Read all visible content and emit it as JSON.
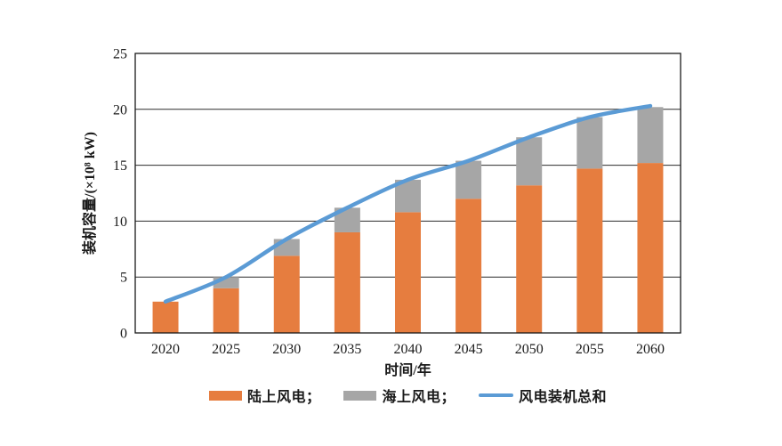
{
  "figure": {
    "background": "#ffffff",
    "axis_color": "#1a1a1a",
    "text_color": "#1a1a1a",
    "grid_color": "#2b2b2b"
  },
  "chart_data": {
    "type": "bar",
    "subtype": "stacked-bars-with-total-line",
    "title": "",
    "xlabel": "时间/年",
    "ylabel": "装机容量/(×10⁸ kW)",
    "categories": [
      "2020",
      "2025",
      "2030",
      "2035",
      "2040",
      "2045",
      "2050",
      "2055",
      "2060"
    ],
    "series": [
      {
        "name": "陆上风电",
        "type": "bar",
        "color": "#E67D3F",
        "values": [
          2.8,
          4.0,
          6.9,
          9.0,
          10.8,
          12.0,
          13.2,
          14.7,
          15.2
        ]
      },
      {
        "name": "海上风电",
        "type": "bar",
        "color": "#A6A6A6",
        "values": [
          0.0,
          1.0,
          1.5,
          2.2,
          2.9,
          3.4,
          4.3,
          4.6,
          5.0
        ]
      },
      {
        "name": "风电装机总和",
        "type": "line",
        "color": "#5B9BD5",
        "values": [
          2.8,
          5.0,
          8.4,
          11.2,
          13.7,
          15.4,
          17.5,
          19.3,
          20.3
        ]
      }
    ],
    "ylim": [
      0,
      25
    ],
    "yticks": [
      0,
      5,
      10,
      15,
      20,
      25
    ],
    "grid": "horizontal",
    "legend_position": "bottom"
  },
  "legend": {
    "items": [
      {
        "label": "陆上风电；",
        "swatch": "bar",
        "color": "#E67D3F"
      },
      {
        "label": "海上风电；",
        "swatch": "bar",
        "color": "#A6A6A6"
      },
      {
        "label": "风电装机总和",
        "swatch": "line",
        "color": "#5B9BD5"
      }
    ]
  }
}
